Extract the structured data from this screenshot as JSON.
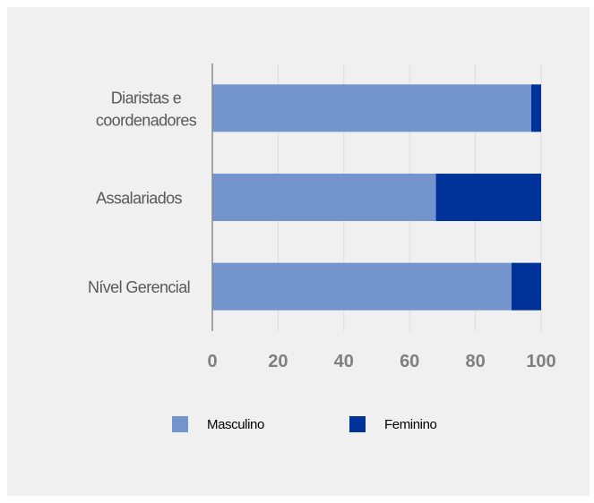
{
  "chart_data": {
    "type": "bar",
    "orientation": "horizontal",
    "stacked": true,
    "categories": [
      "Diaristas e\ncoordenadores",
      "Assalariados",
      "Nível Gerencial"
    ],
    "series": [
      {
        "name": "Masculino",
        "values": [
          97,
          68,
          91
        ],
        "color": "#7394cc"
      },
      {
        "name": "Feminino",
        "values": [
          3,
          32,
          9
        ],
        "color": "#003399"
      }
    ],
    "xlim": [
      0,
      100
    ],
    "xticks": [
      "0",
      "20",
      "40",
      "60",
      "80",
      "100"
    ],
    "grid": true,
    "legend_position": "bottom"
  }
}
